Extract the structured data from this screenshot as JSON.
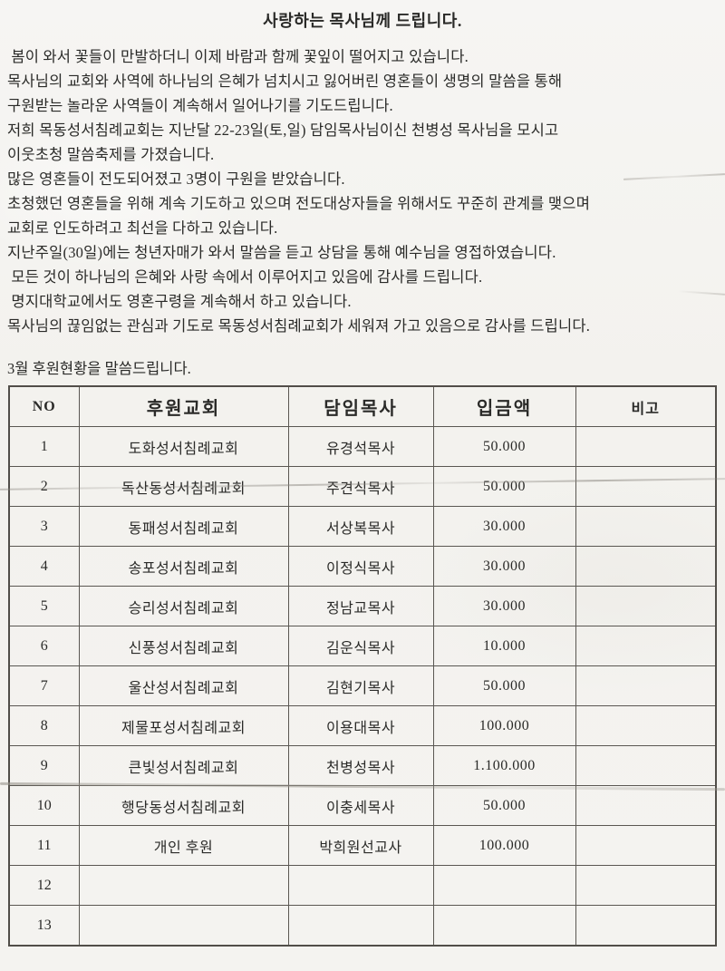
{
  "document": {
    "title": "사랑하는 목사님께 드립니다.",
    "letter_lines": [
      " 봄이 와서 꽃들이 만발하더니 이제 바람과 함께 꽃잎이 떨어지고 있습니다.",
      "목사님의 교회와 사역에 하나님의 은혜가 넘치시고 잃어버린 영혼들이 생명의 말씀을 통해",
      "구원받는 놀라운 사역들이 계속해서 일어나기를 기도드립니다.",
      "저희 목동성서침례교회는 지난달 22-23일(토,일) 담임목사님이신 천병성 목사님을 모시고",
      "이웃초청 말씀축제를 가졌습니다.",
      "많은 영혼들이 전도되어졌고 3명이 구원을 받았습니다.",
      "초청했던 영혼들을 위해 계속 기도하고 있으며 전도대상자들을 위해서도 꾸준히 관계를 맺으며",
      "교회로 인도하려고 최선을 다하고 있습니다.",
      "지난주일(30일)에는 청년자매가 와서 말씀을 듣고 상담을 통해 예수님을 영접하였습니다.",
      " 모든 것이 하나님의 은혜와 사랑 속에서 이루어지고 있음에 감사를 드립니다.",
      " 명지대학교에서도 영혼구령을 계속해서 하고 있습니다.",
      "목사님의 끊임없는 관심과 기도로 목동성서침례교회가 세워져 가고 있음으로 감사를 드립니다."
    ],
    "table_intro": "3월 후원현황을 말씀드립니다."
  },
  "table": {
    "headers": [
      "NO",
      "후원교회",
      "담임목사",
      "입금액",
      "비고"
    ],
    "rows": [
      {
        "no": "1",
        "church": "도화성서침례교회",
        "pastor": "유경석목사",
        "amount": "50.000",
        "note": ""
      },
      {
        "no": "2",
        "church": "독산동성서침례교회",
        "pastor": "주견식목사",
        "amount": "50.000",
        "note": ""
      },
      {
        "no": "3",
        "church": "동패성서침례교회",
        "pastor": "서상복목사",
        "amount": "30.000",
        "note": ""
      },
      {
        "no": "4",
        "church": "송포성서침례교회",
        "pastor": "이정식목사",
        "amount": "30.000",
        "note": ""
      },
      {
        "no": "5",
        "church": "승리성서침례교회",
        "pastor": "정남교목사",
        "amount": "30.000",
        "note": ""
      },
      {
        "no": "6",
        "church": "신풍성서침례교회",
        "pastor": "김운식목사",
        "amount": "10.000",
        "note": ""
      },
      {
        "no": "7",
        "church": "울산성서침례교회",
        "pastor": "김현기목사",
        "amount": "50.000",
        "note": ""
      },
      {
        "no": "8",
        "church": "제물포성서침례교회",
        "pastor": "이용대목사",
        "amount": "100.000",
        "note": ""
      },
      {
        "no": "9",
        "church": "큰빛성서침례교회",
        "pastor": "천병성목사",
        "amount": "1.100.000",
        "note": ""
      },
      {
        "no": "10",
        "church": "행당동성서침례교회",
        "pastor": "이충세목사",
        "amount": "50.000",
        "note": ""
      },
      {
        "no": "11",
        "church": "개인 후원",
        "pastor": "박희원선교사",
        "amount": "100.000",
        "note": ""
      },
      {
        "no": "12",
        "church": "",
        "pastor": "",
        "amount": "",
        "note": ""
      },
      {
        "no": "13",
        "church": "",
        "pastor": "",
        "amount": "",
        "note": ""
      }
    ]
  },
  "colors": {
    "paper": "#f4f3f0",
    "ink": "#2a2a28",
    "table_border": "#5a5752"
  }
}
